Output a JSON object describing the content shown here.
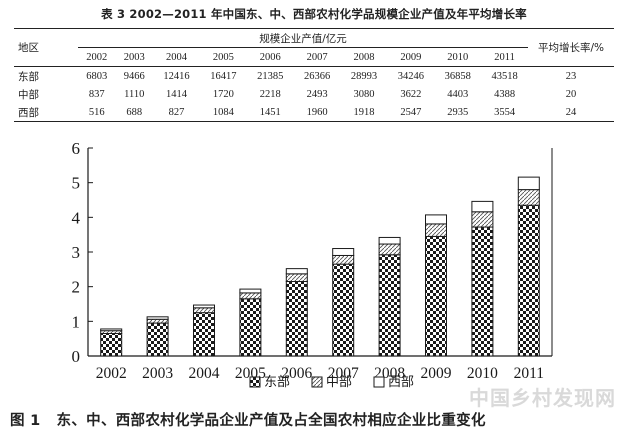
{
  "table": {
    "caption": "表 3   2002—2011 年中国东、中、西部农村化学品规模企业产值及年平均增长率",
    "header_region": "地区",
    "header_value_group": "规模企业产值/亿元",
    "header_rate": "平均增长率/%",
    "years": [
      "2002",
      "2003",
      "2004",
      "2005",
      "2006",
      "2007",
      "2008",
      "2009",
      "2010",
      "2011"
    ],
    "rows": [
      {
        "region": "东部",
        "values": [
          "6803",
          "9466",
          "12416",
          "16417",
          "21385",
          "26366",
          "28993",
          "34246",
          "36858",
          "43518"
        ],
        "rate": "23"
      },
      {
        "region": "中部",
        "values": [
          "837",
          "1110",
          "1414",
          "1720",
          "2218",
          "2493",
          "3080",
          "3622",
          "4403",
          "4388"
        ],
        "rate": "20"
      },
      {
        "region": "西部",
        "values": [
          "516",
          "688",
          "827",
          "1084",
          "1451",
          "1960",
          "1918",
          "2547",
          "2935",
          "3554"
        ],
        "rate": "24"
      }
    ]
  },
  "chart_data": {
    "type": "bar",
    "stacked": true,
    "categories": [
      "2002",
      "2003",
      "2004",
      "2005",
      "2006",
      "2007",
      "2008",
      "2009",
      "2010",
      "2011"
    ],
    "series": [
      {
        "name": "东部",
        "values": [
          0.65,
          0.95,
          1.25,
          1.65,
          2.15,
          2.65,
          2.92,
          3.45,
          3.72,
          4.35
        ],
        "pattern": "checker"
      },
      {
        "name": "中部",
        "values": [
          0.08,
          0.11,
          0.14,
          0.17,
          0.22,
          0.25,
          0.31,
          0.36,
          0.44,
          0.45
        ],
        "pattern": "hatch"
      },
      {
        "name": "西部",
        "values": [
          0.05,
          0.07,
          0.08,
          0.11,
          0.15,
          0.2,
          0.19,
          0.26,
          0.3,
          0.36
        ],
        "pattern": "white"
      }
    ],
    "ylim": [
      0,
      6
    ],
    "yticks": [
      "0",
      "1",
      "2",
      "3",
      "4",
      "5",
      "6"
    ],
    "legend_position": "bottom-center",
    "grid": false,
    "colors": {
      "ink": "#1a1a1a",
      "fill_light": "#ffffff"
    }
  },
  "figure": {
    "number": "图 1",
    "caption": "东、中、西部农村化学品企业产值及占全国农村相应企业比重变化"
  },
  "watermark": "中国乡村发现网"
}
